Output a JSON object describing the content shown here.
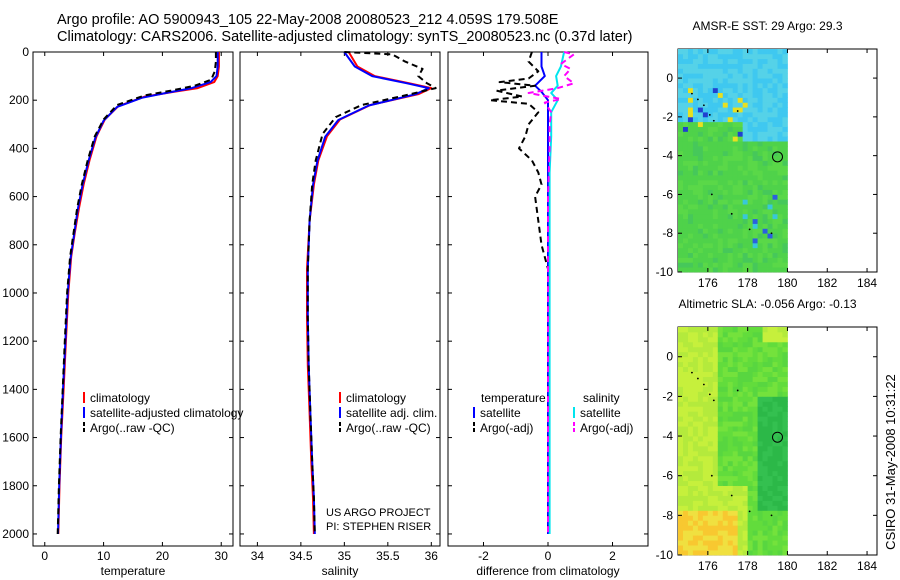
{
  "header": {
    "line1": "Argo profile: AO 5900943_105 22-May-2008 20080523_212 4.059S 179.508E",
    "line2": "Climatology: CARS2006. Satellite-adjusted climatology: synTS_20080523.nc (0.37d later)"
  },
  "side_label": "CSIRO 31-May-2008 10:31:22",
  "colors": {
    "climatology": "#ff0000",
    "satellite": "#0000ff",
    "argo": "#000000",
    "satellite_salinity": "#00e5ee",
    "argo_salinity": "#ff00ff"
  },
  "chart_data": [
    {
      "id": "temperature",
      "type": "line",
      "xlabel": "temperature",
      "xlim": [
        -2,
        32
      ],
      "xticks": [
        0,
        10,
        20,
        30
      ],
      "ylim": [
        2050,
        0
      ],
      "yticks": [
        0,
        200,
        400,
        600,
        800,
        1000,
        1200,
        1400,
        1600,
        1800,
        2000
      ],
      "legend": [
        "climatology",
        "satellite-adjusted climatology",
        "Argo(..raw -QC)"
      ],
      "series": [
        {
          "name": "climatology",
          "color": "#ff0000",
          "dash": "",
          "points": [
            [
              29.6,
              0
            ],
            [
              29.6,
              60
            ],
            [
              29.4,
              100
            ],
            [
              28.8,
              125
            ],
            [
              26,
              150
            ],
            [
              22,
              165
            ],
            [
              17,
              185
            ],
            [
              12.5,
              225
            ],
            [
              10.2,
              280
            ],
            [
              8.8,
              350
            ],
            [
              7.6,
              450
            ],
            [
              6.6,
              550
            ],
            [
              5.8,
              650
            ],
            [
              5.1,
              750
            ],
            [
              4.5,
              850
            ],
            [
              4.0,
              1000
            ],
            [
              3.6,
              1200
            ],
            [
              3.2,
              1400
            ],
            [
              2.8,
              1600
            ],
            [
              2.5,
              1800
            ],
            [
              2.3,
              2000
            ]
          ]
        },
        {
          "name": "satellite-adjusted climatology",
          "color": "#0000ff",
          "dash": "",
          "points": [
            [
              29.4,
              0
            ],
            [
              29.4,
              60
            ],
            [
              29.2,
              100
            ],
            [
              28.2,
              125
            ],
            [
              25,
              150
            ],
            [
              21,
              168
            ],
            [
              16.5,
              190
            ],
            [
              12.3,
              228
            ],
            [
              10,
              285
            ],
            [
              8.6,
              355
            ],
            [
              7.4,
              455
            ],
            [
              6.4,
              555
            ],
            [
              5.6,
              655
            ],
            [
              5.0,
              755
            ],
            [
              4.4,
              855
            ],
            [
              3.9,
              1000
            ],
            [
              3.5,
              1200
            ],
            [
              3.1,
              1400
            ],
            [
              2.75,
              1600
            ],
            [
              2.45,
              1800
            ],
            [
              2.25,
              2000
            ]
          ]
        },
        {
          "name": "Argo(..raw -QC)",
          "color": "#000000",
          "dash": "6,4",
          "points": [
            [
              29.1,
              0
            ],
            [
              29.1,
              40
            ],
            [
              28.9,
              80
            ],
            [
              28.3,
              115
            ],
            [
              25.5,
              140
            ],
            [
              21.5,
              160
            ],
            [
              17,
              180
            ],
            [
              12.3,
              220
            ],
            [
              10,
              280
            ],
            [
              8.5,
              350
            ],
            [
              7.3,
              450
            ],
            [
              6.3,
              550
            ],
            [
              5.5,
              650
            ],
            [
              4.9,
              750
            ],
            [
              4.3,
              850
            ],
            [
              3.8,
              1000
            ],
            [
              3.4,
              1200
            ],
            [
              3.05,
              1400
            ],
            [
              2.7,
              1600
            ],
            [
              2.4,
              1800
            ],
            [
              2.2,
              2000
            ]
          ]
        }
      ]
    },
    {
      "id": "salinity",
      "type": "line",
      "xlabel": "salinity",
      "xlim": [
        33.8,
        36.1
      ],
      "xticks": [
        34,
        34.5,
        35,
        35.5,
        36
      ],
      "ylim": [
        2050,
        0
      ],
      "legend": [
        "climatology",
        "satellite adj. clim.",
        "Argo(..raw -QC)"
      ],
      "annotation": [
        "US ARGO PROJECT",
        "PI: STEPHEN RISER"
      ],
      "series": [
        {
          "name": "climatology",
          "color": "#ff0000",
          "dash": "",
          "points": [
            [
              35.05,
              0
            ],
            [
              35.15,
              60
            ],
            [
              35.35,
              100
            ],
            [
              35.75,
              130
            ],
            [
              36.0,
              150
            ],
            [
              35.85,
              175
            ],
            [
              35.3,
              220
            ],
            [
              34.95,
              280
            ],
            [
              34.8,
              350
            ],
            [
              34.7,
              450
            ],
            [
              34.65,
              550
            ],
            [
              34.6,
              700
            ],
            [
              34.57,
              900
            ],
            [
              34.57,
              1100
            ],
            [
              34.58,
              1300
            ],
            [
              34.6,
              1500
            ],
            [
              34.62,
              1700
            ],
            [
              34.64,
              1850
            ],
            [
              34.65,
              2000
            ]
          ]
        },
        {
          "name": "satellite adj. clim.",
          "color": "#0000ff",
          "dash": "",
          "points": [
            [
              35.0,
              0
            ],
            [
              35.12,
              60
            ],
            [
              35.32,
              100
            ],
            [
              35.72,
              130
            ],
            [
              35.97,
              150
            ],
            [
              35.82,
              175
            ],
            [
              35.28,
              222
            ],
            [
              34.93,
              282
            ],
            [
              34.78,
              352
            ],
            [
              34.69,
              452
            ],
            [
              34.64,
              552
            ],
            [
              34.6,
              700
            ],
            [
              34.58,
              900
            ],
            [
              34.58,
              1100
            ],
            [
              34.59,
              1300
            ],
            [
              34.61,
              1500
            ],
            [
              34.63,
              1700
            ],
            [
              34.65,
              1850
            ],
            [
              34.66,
              2000
            ]
          ]
        },
        {
          "name": "Argo(..raw -QC)",
          "color": "#000000",
          "dash": "6,4",
          "points": [
            [
              35.0,
              0
            ],
            [
              35.55,
              10
            ],
            [
              35.7,
              40
            ],
            [
              35.9,
              70
            ],
            [
              35.85,
              100
            ],
            [
              35.95,
              130
            ],
            [
              36.05,
              150
            ],
            [
              35.7,
              180
            ],
            [
              35.2,
              220
            ],
            [
              34.9,
              270
            ],
            [
              34.75,
              340
            ],
            [
              34.67,
              450
            ],
            [
              34.63,
              550
            ],
            [
              34.6,
              700
            ],
            [
              34.58,
              900
            ],
            [
              34.58,
              1100
            ],
            [
              34.59,
              1300
            ],
            [
              34.61,
              1500
            ],
            [
              34.63,
              1700
            ],
            [
              34.65,
              1850
            ],
            [
              34.66,
              2000
            ]
          ]
        }
      ]
    },
    {
      "id": "difference",
      "type": "line",
      "xlabel": "difference from climatology",
      "xlim": [
        -3.1,
        3.1
      ],
      "xticks": [
        -2,
        0,
        2
      ],
      "ylim": [
        2050,
        0
      ],
      "legend_temperature": {
        "heading": "temperature",
        "items": [
          "satellite",
          "Argo(-adj)"
        ]
      },
      "legend_salinity": {
        "heading": "salinity",
        "items": [
          "satellite",
          "Argo(-adj)"
        ]
      },
      "series": [
        {
          "name": "temperature satellite",
          "color": "#0000ff",
          "dash": "",
          "points": [
            [
              -0.2,
              0
            ],
            [
              -0.2,
              60
            ],
            [
              -0.1,
              100
            ],
            [
              -0.4,
              140
            ],
            [
              -0.2,
              165
            ],
            [
              0,
              200
            ],
            [
              0,
              250
            ],
            [
              0,
              400
            ],
            [
              0,
              600
            ],
            [
              0,
              800
            ],
            [
              0,
              1000
            ],
            [
              0,
              1200
            ],
            [
              0,
              1400
            ],
            [
              0,
              1600
            ],
            [
              0,
              1800
            ],
            [
              0,
              2000
            ]
          ]
        },
        {
          "name": "temperature Argo(-adj)",
          "color": "#000000",
          "dash": "6,4",
          "points": [
            [
              -0.5,
              0
            ],
            [
              -0.6,
              40
            ],
            [
              -0.3,
              80
            ],
            [
              -0.6,
              110
            ],
            [
              -1.5,
              125
            ],
            [
              -0.4,
              140
            ],
            [
              -1.6,
              160
            ],
            [
              -0.8,
              185
            ],
            [
              -1.8,
              200
            ],
            [
              -0.6,
              215
            ],
            [
              -0.3,
              250
            ],
            [
              -0.6,
              300
            ],
            [
              -0.7,
              350
            ],
            [
              -0.9,
              400
            ],
            [
              -0.5,
              450
            ],
            [
              -0.3,
              500
            ],
            [
              -0.2,
              550
            ],
            [
              -0.4,
              600
            ],
            [
              -0.3,
              700
            ],
            [
              -0.2,
              800
            ],
            [
              0,
              900
            ],
            [
              0,
              950
            ],
            [
              0,
              1000
            ],
            [
              0,
              1200
            ],
            [
              0,
              1400
            ],
            [
              0,
              1600
            ],
            [
              0,
              1800
            ],
            [
              0,
              2000
            ]
          ]
        },
        {
          "name": "salinity satellite",
          "color": "#00e5ee",
          "dash": "",
          "points": [
            [
              0.5,
              0
            ],
            [
              0.4,
              60
            ],
            [
              0.25,
              100
            ],
            [
              0.3,
              140
            ],
            [
              0.1,
              170
            ],
            [
              0.3,
              200
            ],
            [
              0.1,
              250
            ],
            [
              0.1,
              350
            ],
            [
              0.05,
              500
            ],
            [
              0.05,
              800
            ],
            [
              0.05,
              1200
            ],
            [
              0.05,
              1600
            ],
            [
              0.05,
              2000
            ]
          ]
        },
        {
          "name": "salinity Argo(-adj)",
          "color": "#ff00ff",
          "dash": "6,4",
          "points": [
            [
              0.5,
              0
            ],
            [
              0.8,
              10
            ],
            [
              0.4,
              50
            ],
            [
              0.7,
              70
            ],
            [
              0.5,
              100
            ],
            [
              0.8,
              130
            ],
            [
              0.3,
              150
            ],
            [
              -0.6,
              170
            ],
            [
              0.4,
              195
            ],
            [
              -0.1,
              210
            ],
            [
              0.1,
              250
            ],
            [
              0.05,
              300
            ],
            [
              0.05,
              400
            ],
            [
              0,
              600
            ],
            [
              0,
              800
            ],
            [
              0,
              1000
            ],
            [
              0,
              1200
            ],
            [
              0,
              1400
            ],
            [
              0,
              1600
            ],
            [
              0,
              1800
            ],
            [
              0,
              2000
            ]
          ]
        }
      ]
    },
    {
      "id": "amsre_sst",
      "type": "heatmap",
      "title": "AMSR-E SST: 29 Argo: 29.3",
      "xlim": [
        174.5,
        184.5
      ],
      "ylim": [
        -10,
        1.5
      ],
      "xticks": [
        176,
        178,
        180,
        182,
        184
      ],
      "yticks": [
        0,
        -2,
        -4,
        -6,
        -8,
        -10
      ],
      "data_xlim": [
        174.5,
        180
      ],
      "marker": [
        179.5,
        -4.06
      ],
      "palette": "sst"
    },
    {
      "id": "altimetric_sla",
      "type": "heatmap",
      "title": "Altimetric SLA: -0.056 Argo: -0.13",
      "xlim": [
        174.5,
        184.5
      ],
      "ylim": [
        -10,
        1.5
      ],
      "xticks": [
        176,
        178,
        180,
        182,
        184
      ],
      "yticks": [
        0,
        -2,
        -4,
        -6,
        -8,
        -10
      ],
      "data_xlim": [
        174.5,
        180
      ],
      "marker": [
        179.5,
        -4.06
      ],
      "palette": "sla"
    }
  ]
}
